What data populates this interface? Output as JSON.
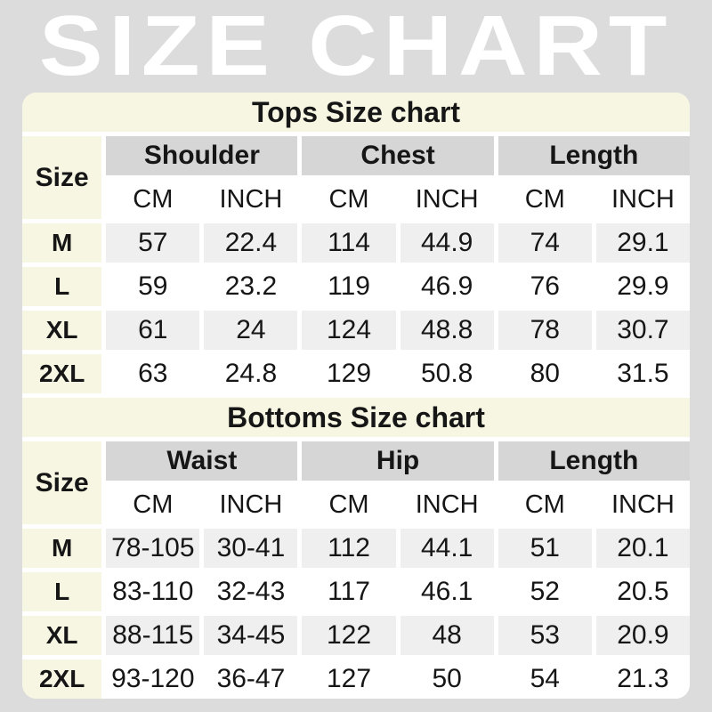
{
  "page": {
    "title": "SIZE CHART"
  },
  "colors": {
    "page_bg": "#dcdcdc",
    "panel_bg": "#ffffff",
    "cream": "#f7f6e2",
    "header_gray": "#d6d6d6",
    "row_alt_gray": "#f0efef",
    "title_color": "#ffffff",
    "text_color": "#161616"
  },
  "tables": [
    {
      "title": "Tops Size chart",
      "size_header": "Size",
      "group_headers": [
        "Shoulder",
        "Chest",
        "Length"
      ],
      "unit_headers": [
        "CM",
        "INCH",
        "CM",
        "INCH",
        "CM",
        "INCH"
      ],
      "rows": [
        {
          "size": "M",
          "values": [
            "57",
            "22.4",
            "114",
            "44.9",
            "74",
            "29.1"
          ]
        },
        {
          "size": "L",
          "values": [
            "59",
            "23.2",
            "119",
            "46.9",
            "76",
            "29.9"
          ]
        },
        {
          "size": "XL",
          "values": [
            "61",
            "24",
            "124",
            "48.8",
            "78",
            "30.7"
          ]
        },
        {
          "size": "2XL",
          "values": [
            "63",
            "24.8",
            "129",
            "50.8",
            "80",
            "31.5"
          ]
        }
      ]
    },
    {
      "title": "Bottoms Size chart",
      "size_header": "Size",
      "group_headers": [
        "Waist",
        "Hip",
        "Length"
      ],
      "unit_headers": [
        "CM",
        "INCH",
        "CM",
        "INCH",
        "CM",
        "INCH"
      ],
      "rows": [
        {
          "size": "M",
          "values": [
            "78-105",
            "30-41",
            "112",
            "44.1",
            "51",
            "20.1"
          ]
        },
        {
          "size": "L",
          "values": [
            "83-110",
            "32-43",
            "117",
            "46.1",
            "52",
            "20.5"
          ]
        },
        {
          "size": "XL",
          "values": [
            "88-115",
            "34-45",
            "122",
            "48",
            "53",
            "20.9"
          ]
        },
        {
          "size": "2XL",
          "values": [
            "93-120",
            "36-47",
            "127",
            "50",
            "54",
            "21.3"
          ]
        }
      ]
    }
  ]
}
